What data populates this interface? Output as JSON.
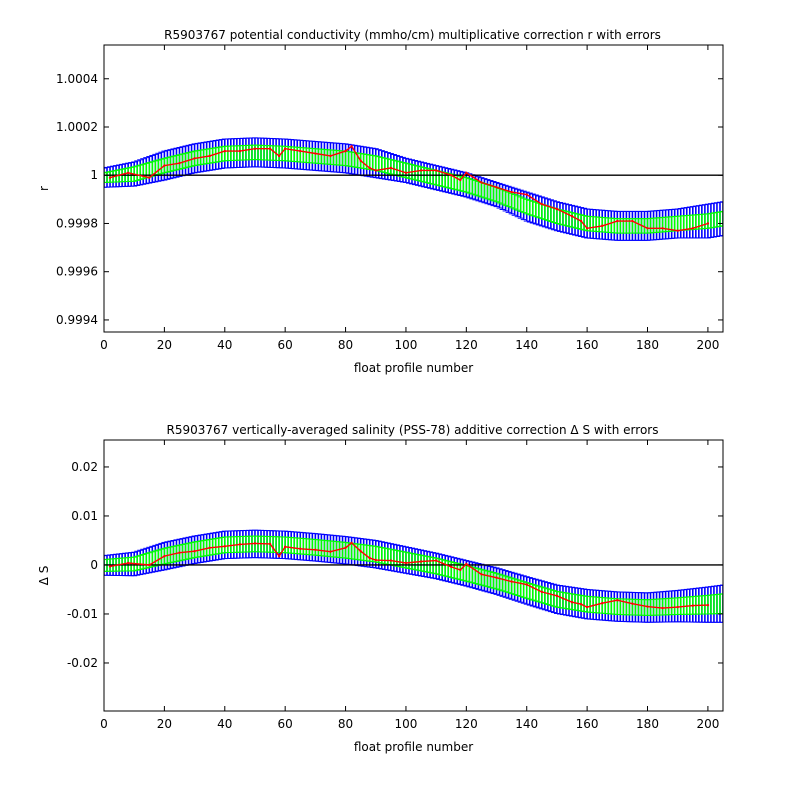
{
  "chart_data": [
    {
      "type": "line",
      "title": "R5903767 potential conductivity (mmho/cm) multiplicative correction r with errors",
      "xlabel": "float profile number",
      "ylabel": "r",
      "xlim": [
        0,
        205
      ],
      "ylim": [
        0.99935,
        1.00054
      ],
      "xticks": [
        0,
        20,
        40,
        60,
        80,
        100,
        120,
        140,
        160,
        180,
        200
      ],
      "yticks": [
        0.9994,
        0.9996,
        0.9998,
        1,
        1.0002,
        1.0004
      ],
      "ytick_labels": [
        "0.9994",
        "0.9996",
        "0.9998",
        "1",
        "1.0002",
        "1.0004"
      ],
      "reference_line": 1,
      "grid": false,
      "series": [
        {
          "role": "fit",
          "color": "#ff0000",
          "x": [
            0,
            10,
            20,
            30,
            40,
            50,
            60,
            70,
            80,
            90,
            100,
            110,
            120,
            130,
            140,
            150,
            160,
            170,
            180,
            190,
            200,
            205
          ],
          "y": [
            0.99999,
            1.000005,
            1.00004,
            1.00007,
            1.00009,
            1.000095,
            1.00009,
            1.00008,
            1.00007,
            1.00005,
            1.00002,
            0.99999,
            0.99996,
            0.99992,
            0.99987,
            0.99983,
            0.9998,
            0.99979,
            0.99979,
            0.9998,
            0.99981,
            0.99982
          ]
        },
        {
          "role": "error_1sigma",
          "color": "#00ff00",
          "x": [
            0,
            10,
            20,
            30,
            40,
            50,
            60,
            70,
            80,
            90,
            100,
            110,
            120,
            130,
            140,
            150,
            160,
            170,
            180,
            190,
            200,
            205
          ],
          "err": [
            2e-05,
            3e-05,
            3e-05,
            3e-05,
            3e-05,
            3e-05,
            3e-05,
            3e-05,
            3e-05,
            3e-05,
            3e-05,
            3e-05,
            3e-05,
            3e-05,
            3e-05,
            3e-05,
            3e-05,
            3e-05,
            3e-05,
            3e-05,
            3e-05,
            3e-05
          ]
        },
        {
          "role": "error_2sigma",
          "color": "#0000ff",
          "x": [
            0,
            10,
            20,
            30,
            40,
            50,
            60,
            70,
            80,
            90,
            100,
            110,
            120,
            130,
            140,
            150,
            160,
            170,
            180,
            190,
            200,
            205
          ],
          "err": [
            4e-05,
            5e-05,
            6e-05,
            6e-05,
            6e-05,
            6e-05,
            6e-05,
            6e-05,
            6e-05,
            6e-05,
            5e-05,
            5e-05,
            5e-05,
            5e-05,
            6e-05,
            6e-05,
            6e-05,
            6e-05,
            6e-05,
            6e-05,
            7e-05,
            7e-05
          ]
        },
        {
          "role": "profile_values",
          "color": "#ff0000",
          "x": [
            2,
            8,
            15,
            20,
            25,
            30,
            35,
            40,
            45,
            50,
            55,
            58,
            60,
            65,
            70,
            75,
            80,
            82,
            85,
            88,
            90,
            95,
            100,
            105,
            110,
            115,
            118,
            120,
            125,
            130,
            135,
            140,
            145,
            150,
            155,
            158,
            160,
            165,
            170,
            175,
            180,
            185,
            190,
            195,
            200
          ],
          "y": [
            0.99999,
            1.00001,
            0.99999,
            1.00004,
            1.00005,
            1.00007,
            1.00008,
            1.0001,
            1.0001,
            1.00011,
            1.00011,
            1.00008,
            1.00011,
            1.0001,
            1.00009,
            1.00008,
            1.0001,
            1.00012,
            1.00006,
            1.00003,
            1.00002,
            1.00003,
            1.00001,
            1.00002,
            1.00002,
            1.0,
            0.99998,
            1.00001,
            0.99997,
            0.99995,
            0.99993,
            0.99992,
            0.99988,
            0.99986,
            0.99983,
            0.99981,
            0.99978,
            0.99979,
            0.99981,
            0.99981,
            0.99978,
            0.99978,
            0.99977,
            0.99978,
            0.9998
          ]
        }
      ]
    },
    {
      "type": "line",
      "title": "R5903767 vertically-averaged salinity (PSS-78) additive correction Δ S with errors",
      "xlabel": "float profile number",
      "ylabel": "Δ S",
      "xlim": [
        0,
        205
      ],
      "ylim": [
        -0.0298,
        0.0255
      ],
      "xticks": [
        0,
        20,
        40,
        60,
        80,
        100,
        120,
        140,
        160,
        180,
        200
      ],
      "yticks": [
        -0.02,
        -0.01,
        0,
        0.01,
        0.02
      ],
      "ytick_labels": [
        "-0.02",
        "-0.01",
        "0",
        "0.01",
        "0.02"
      ],
      "reference_line": 0,
      "grid": false,
      "series": [
        {
          "role": "fit",
          "color": "#ff0000",
          "x": [
            0,
            10,
            20,
            30,
            40,
            50,
            60,
            70,
            80,
            90,
            100,
            110,
            120,
            130,
            140,
            150,
            160,
            170,
            180,
            190,
            200,
            205
          ],
          "y": [
            -0.0001,
            0.0002,
            0.0018,
            0.0031,
            0.0041,
            0.0043,
            0.0041,
            0.0036,
            0.003,
            0.0022,
            0.001,
            -0.0002,
            -0.0017,
            -0.0033,
            -0.0052,
            -0.007,
            -0.008,
            -0.0085,
            -0.0087,
            -0.0084,
            -0.0081,
            -0.0079
          ]
        },
        {
          "role": "error_1sigma",
          "color": "#00ff00",
          "x": [
            0,
            10,
            20,
            30,
            40,
            50,
            60,
            70,
            80,
            90,
            100,
            110,
            120,
            130,
            140,
            150,
            160,
            170,
            180,
            190,
            200,
            205
          ],
          "err": [
            0.0012,
            0.0014,
            0.0016,
            0.0016,
            0.0016,
            0.0016,
            0.0016,
            0.0016,
            0.0016,
            0.0016,
            0.0016,
            0.0016,
            0.0016,
            0.0016,
            0.0016,
            0.0016,
            0.0016,
            0.0016,
            0.0016,
            0.0017,
            0.0019,
            0.002
          ]
        },
        {
          "role": "error_2sigma",
          "color": "#0000ff",
          "x": [
            0,
            10,
            20,
            30,
            40,
            50,
            60,
            70,
            80,
            90,
            100,
            110,
            120,
            130,
            140,
            150,
            160,
            170,
            180,
            190,
            200,
            205
          ],
          "err": [
            0.002,
            0.0024,
            0.0028,
            0.0028,
            0.0028,
            0.0028,
            0.0028,
            0.0028,
            0.0028,
            0.0028,
            0.0027,
            0.0026,
            0.0026,
            0.0027,
            0.0028,
            0.0029,
            0.003,
            0.003,
            0.003,
            0.0032,
            0.0036,
            0.0038
          ]
        },
        {
          "role": "profile_values",
          "color": "#ff0000",
          "x": [
            2,
            8,
            15,
            20,
            25,
            30,
            35,
            40,
            45,
            50,
            55,
            58,
            60,
            65,
            70,
            75,
            80,
            82,
            85,
            88,
            90,
            95,
            100,
            105,
            110,
            115,
            118,
            120,
            125,
            130,
            135,
            140,
            145,
            150,
            155,
            158,
            160,
            165,
            170,
            175,
            180,
            185,
            190,
            195,
            200
          ],
          "y": [
            -0.0003,
            0.0004,
            0.0,
            0.0018,
            0.0025,
            0.0028,
            0.0035,
            0.0038,
            0.0042,
            0.0044,
            0.0043,
            0.0018,
            0.0037,
            0.0033,
            0.0031,
            0.0027,
            0.0035,
            0.0045,
            0.0028,
            0.0014,
            0.001,
            0.0009,
            0.0004,
            0.0007,
            0.0009,
            -0.0004,
            -0.001,
            0.0002,
            -0.0019,
            -0.0026,
            -0.0034,
            -0.004,
            -0.0055,
            -0.0063,
            -0.0076,
            -0.008,
            -0.0086,
            -0.0078,
            -0.0072,
            -0.0079,
            -0.0085,
            -0.0088,
            -0.0086,
            -0.0083,
            -0.0082
          ]
        }
      ]
    }
  ]
}
